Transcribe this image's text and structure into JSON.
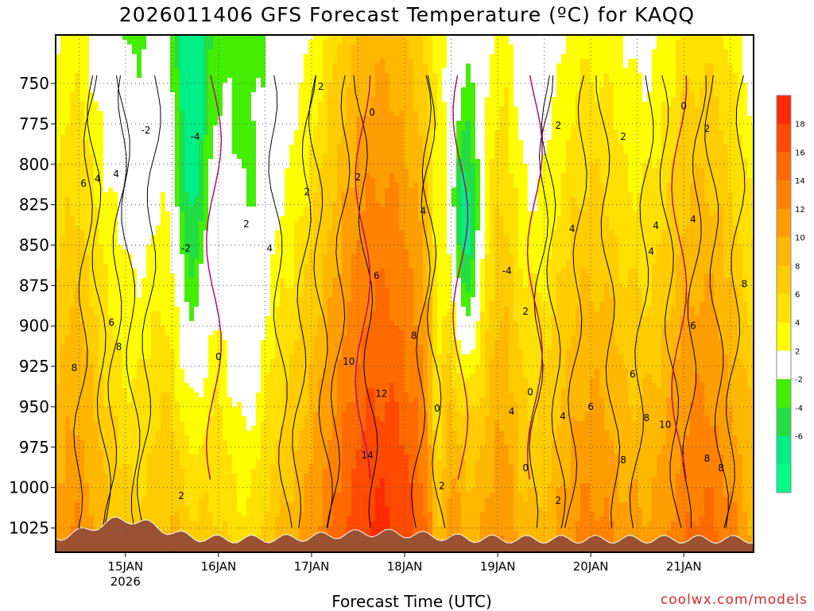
{
  "chart_data": {
    "type": "heatmap",
    "title": "2026011406 GFS Forecast Temperature (ºC) for KAQQ",
    "xlabel": "Forecast Time (UTC)",
    "ylabel": "",
    "x_ticks": [
      {
        "label": "15JAN",
        "sub": "2026",
        "day": 15
      },
      {
        "label": "16JAN",
        "sub": "",
        "day": 16
      },
      {
        "label": "17JAN",
        "sub": "",
        "day": 17
      },
      {
        "label": "18JAN",
        "sub": "",
        "day": 18
      },
      {
        "label": "19JAN",
        "sub": "",
        "day": 19
      },
      {
        "label": "20JAN",
        "sub": "",
        "day": 20
      },
      {
        "label": "21JAN",
        "sub": "",
        "day": 21
      }
    ],
    "xlim": [
      "2026-01-14 06Z",
      "2026-01-21 18Z"
    ],
    "y_ticks": [
      750,
      775,
      800,
      825,
      850,
      875,
      900,
      925,
      950,
      975,
      1000,
      1025
    ],
    "ylim": [
      1040,
      720
    ],
    "grid": true,
    "colorbar": {
      "labels": [
        "18",
        "16",
        "14",
        "12",
        "10",
        "8",
        "6",
        "4",
        "2",
        "-2",
        "-4",
        "-6"
      ],
      "colors": [
        "#ff2a00",
        "#ff4a00",
        "#ff6a00",
        "#ff8200",
        "#ff9e00",
        "#ffb800",
        "#ffcc00",
        "#ffe000",
        "#ffff00",
        "#ffffff",
        "#44ee00",
        "#22dd44",
        "#00ee88",
        "#00ff88"
      ]
    },
    "contour_labels": [
      {
        "text": "-2",
        "day": 15.22,
        "p": 779
      },
      {
        "text": "-4",
        "day": 15.75,
        "p": 783
      },
      {
        "text": "-2",
        "day": 15.65,
        "p": 852
      },
      {
        "text": "2",
        "day": 17.1,
        "p": 752
      },
      {
        "text": "0",
        "day": 17.65,
        "p": 768
      },
      {
        "text": "2",
        "day": 16.95,
        "p": 817
      },
      {
        "text": "2",
        "day": 16.3,
        "p": 837
      },
      {
        "text": "2",
        "day": 17.5,
        "p": 808
      },
      {
        "text": "4",
        "day": 16.55,
        "p": 852
      },
      {
        "text": "4",
        "day": 18.2,
        "p": 829
      },
      {
        "text": "6",
        "day": 17.7,
        "p": 869
      },
      {
        "text": "8",
        "day": 18.1,
        "p": 906
      },
      {
        "text": "10",
        "day": 17.4,
        "p": 922
      },
      {
        "text": "12",
        "day": 17.75,
        "p": 942
      },
      {
        "text": "14",
        "day": 17.6,
        "p": 980
      },
      {
        "text": "0",
        "day": 16.0,
        "p": 919
      },
      {
        "text": "2",
        "day": 15.6,
        "p": 1005
      },
      {
        "text": "6",
        "day": 14.55,
        "p": 812
      },
      {
        "text": "4",
        "day": 14.7,
        "p": 809
      },
      {
        "text": "4",
        "day": 14.9,
        "p": 806
      },
      {
        "text": "6",
        "day": 14.85,
        "p": 898
      },
      {
        "text": "8",
        "day": 14.93,
        "p": 913
      },
      {
        "text": "8",
        "day": 14.45,
        "p": 926
      },
      {
        "text": "0",
        "day": 18.35,
        "p": 951
      },
      {
        "text": "2",
        "day": 18.4,
        "p": 999
      },
      {
        "text": "-4",
        "day": 19.1,
        "p": 866
      },
      {
        "text": "2",
        "day": 19.3,
        "p": 891
      },
      {
        "text": "0",
        "day": 19.35,
        "p": 941
      },
      {
        "text": "4",
        "day": 19.15,
        "p": 953
      },
      {
        "text": "0",
        "day": 19.3,
        "p": 988
      },
      {
        "text": "2",
        "day": 19.65,
        "p": 1008
      },
      {
        "text": "2",
        "day": 19.65,
        "p": 776
      },
      {
        "text": "2",
        "day": 20.35,
        "p": 783
      },
      {
        "text": "4",
        "day": 19.8,
        "p": 840
      },
      {
        "text": "4",
        "day": 20.65,
        "p": 854
      },
      {
        "text": "4",
        "day": 20.7,
        "p": 838
      },
      {
        "text": "6",
        "day": 20.0,
        "p": 950
      },
      {
        "text": "6",
        "day": 20.45,
        "p": 930
      },
      {
        "text": "4",
        "day": 19.7,
        "p": 956
      },
      {
        "text": "8",
        "day": 20.35,
        "p": 983
      },
      {
        "text": "8",
        "day": 20.6,
        "p": 957
      },
      {
        "text": "10",
        "day": 20.8,
        "p": 961
      },
      {
        "text": "6",
        "day": 21.1,
        "p": 900
      },
      {
        "text": "8",
        "day": 21.65,
        "p": 874
      },
      {
        "text": "8",
        "day": 21.25,
        "p": 982
      },
      {
        "text": "8",
        "day": 21.4,
        "p": 988
      },
      {
        "text": "0",
        "day": 21.0,
        "p": 764
      },
      {
        "text": "2",
        "day": 21.25,
        "p": 778
      },
      {
        "text": "4",
        "day": 21.1,
        "p": 834
      }
    ]
  },
  "footer": {
    "credit": "coolwx.com/models"
  }
}
